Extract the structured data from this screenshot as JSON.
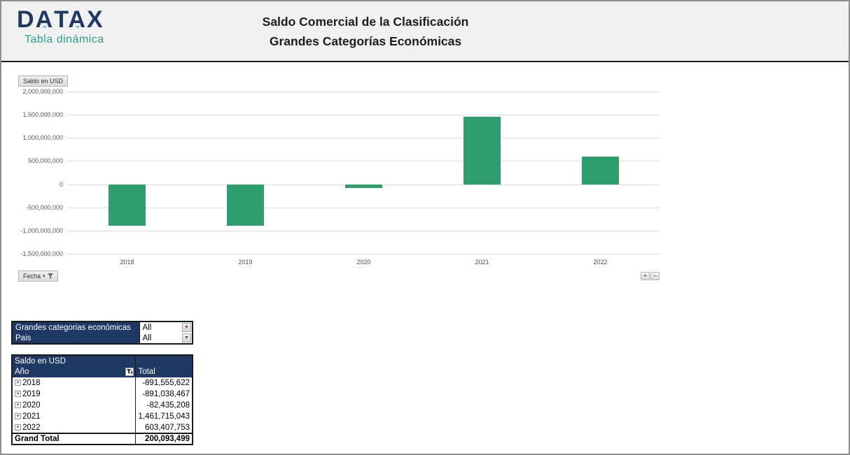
{
  "header": {
    "logo_title": "DATAX",
    "logo_subtitle": "Tabla dinámica",
    "title_line1": "Saldo Comercial de la Clasificación",
    "title_line2": "Grandes Categorías Económicas"
  },
  "chart_controls": {
    "value_field_button": "Saldo en USD",
    "axis_field_button": "Fecha",
    "expand_button": "+",
    "collapse_button": "−",
    "dropdown_arrow": "▾"
  },
  "chart_data": {
    "type": "bar",
    "categories": [
      "2018",
      "2019",
      "2020",
      "2021",
      "2022"
    ],
    "values": [
      -891555622,
      -891038467,
      -82435208,
      1461715043,
      603407753
    ],
    "title": "Saldo Comercial de la Clasificación Grandes Categorías Económicas",
    "xlabel": "",
    "ylabel": "Saldo en USD",
    "ylim": [
      -1500000000,
      2000000000
    ],
    "ytick_step": 500000000,
    "ytick_labels": [
      "2,000,000,000",
      "1,500,000,000",
      "1,000,000,000",
      "500,000,000",
      "0",
      "-500,000,000",
      "-1,000,000,000",
      "-1,500,000,000"
    ],
    "grid": true,
    "legend": false,
    "bar_color": "#2f9e6e"
  },
  "filters": {
    "rows": [
      {
        "label": "Grandes categorias económicas",
        "value": "All"
      },
      {
        "label": "Pais",
        "value": "All"
      }
    ]
  },
  "pivot": {
    "title": "Saldo en USD",
    "row_header": "Año",
    "col_header": "Total",
    "expand_icon": "+",
    "rows": [
      {
        "year": "2018",
        "total": "-891,555,622"
      },
      {
        "year": "2019",
        "total": "-891,038,467"
      },
      {
        "year": "2020",
        "total": "-82,435,208"
      },
      {
        "year": "2021",
        "total": "1,461,715,043"
      },
      {
        "year": "2022",
        "total": "603,407,753"
      }
    ],
    "grand_total_label": "Grand Total",
    "grand_total_value": "200,093,499"
  },
  "colors": {
    "navy": "#1f3864",
    "teal": "#2aa08c",
    "bar_green": "#2f9e6e",
    "gridline": "#dbdbdb",
    "header_band": "#f1f1f1"
  }
}
